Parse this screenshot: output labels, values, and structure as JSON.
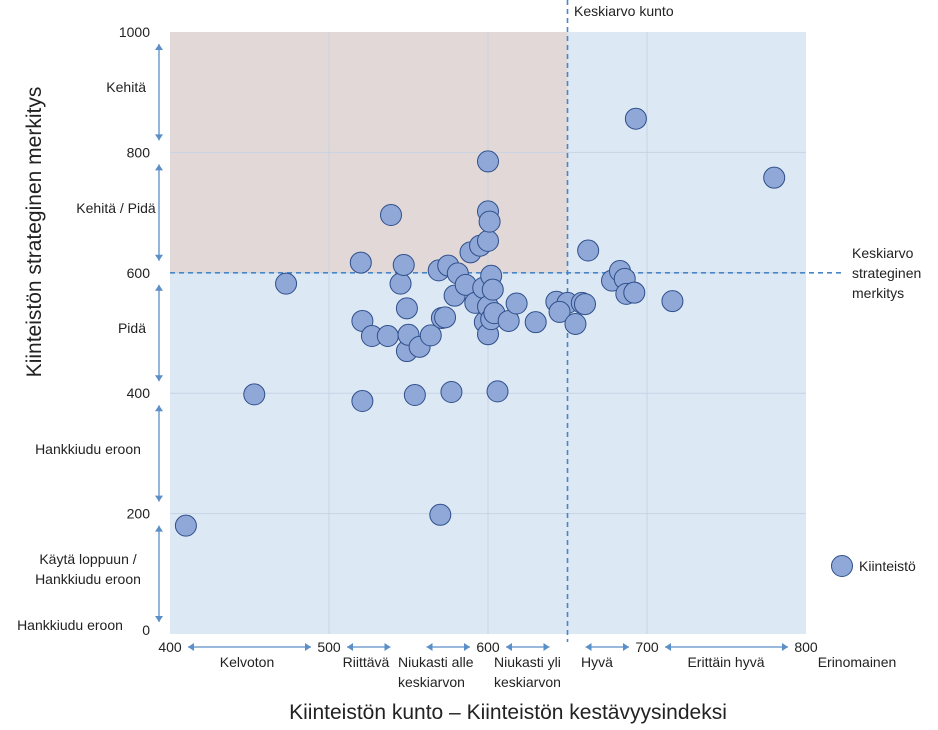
{
  "chart_data": {
    "type": "scatter",
    "xlabel": "Kiinteistön kunto – Kiinteistön kestävyysindeksi",
    "ylabel": "Kiinteistön strateginen merkitys",
    "xlim": [
      400,
      800
    ],
    "ylim": [
      0,
      1000
    ],
    "x_ticks": [
      400,
      500,
      600,
      700,
      800
    ],
    "y_ticks": [
      0,
      200,
      400,
      600,
      800,
      1000
    ],
    "x_tick_labels": [
      "400",
      "500",
      "600",
      "700",
      "800"
    ],
    "y_tick_labels": [
      "0",
      "200",
      "400",
      "600",
      "800",
      "1000"
    ],
    "grid": true,
    "average_x": 650,
    "average_y": 600,
    "average_x_label": "Keskiarvo kunto",
    "average_y_label": [
      "Keskiarvo",
      "strateginen",
      "merkitys"
    ],
    "highlight_region": {
      "x": [
        400,
        650
      ],
      "y": [
        600,
        1000
      ],
      "color": "#e2d8d8"
    },
    "background_color": "#dde8f5",
    "point_color": "#8fa8d8",
    "point_border": "#2f4f8a",
    "legend": {
      "label": "Kiinteistö",
      "position": "right"
    },
    "x_categories": [
      {
        "label": [
          "Kelvoton"
        ],
        "range": [
          400,
          500
        ]
      },
      {
        "label": [
          "Riittävä"
        ],
        "range": [
          500,
          550
        ]
      },
      {
        "label": [
          "Niukasti alle",
          "keskiarvon"
        ],
        "range": [
          550,
          600
        ]
      },
      {
        "label": [
          "Niukasti yli",
          "keskiarvon"
        ],
        "range": [
          600,
          650
        ]
      },
      {
        "label": [
          "Hyvä"
        ],
        "range": [
          650,
          700
        ]
      },
      {
        "label": [
          "Erittäin hyvä"
        ],
        "range": [
          700,
          800
        ]
      },
      {
        "label": [
          "Erinomainen"
        ],
        "range": [
          800,
          820
        ]
      }
    ],
    "y_categories": [
      {
        "label": [
          "Kehitä"
        ],
        "range": [
          800,
          1000
        ]
      },
      {
        "label": [
          "Kehitä / Pidä"
        ],
        "range": [
          600,
          800
        ]
      },
      {
        "label": [
          "Pidä"
        ],
        "range": [
          400,
          600
        ]
      },
      {
        "label": [
          "Hankkiudu eroon"
        ],
        "range": [
          200,
          400
        ]
      },
      {
        "label": [
          "Käytä loppuun /",
          "Hankkiudu eroon"
        ],
        "range": [
          0,
          200
        ]
      },
      {
        "label": [
          "Hankkiudu eroon"
        ],
        "range": [
          0,
          0
        ]
      }
    ],
    "series": [
      {
        "points": [
          [
            410,
            180
          ],
          [
            453,
            398
          ],
          [
            473,
            582
          ],
          [
            520,
            617
          ],
          [
            521,
            520
          ],
          [
            521,
            387
          ],
          [
            539,
            696
          ],
          [
            527,
            495
          ],
          [
            537,
            495
          ],
          [
            545,
            582
          ],
          [
            547,
            613
          ],
          [
            549,
            541
          ],
          [
            549,
            470
          ],
          [
            550,
            497
          ],
          [
            554,
            397
          ],
          [
            557,
            477
          ],
          [
            564,
            496
          ],
          [
            569,
            604
          ],
          [
            570,
            198
          ],
          [
            571,
            525
          ],
          [
            573,
            526
          ],
          [
            575,
            612
          ],
          [
            577,
            402
          ],
          [
            579,
            562
          ],
          [
            581,
            599
          ],
          [
            586,
            580
          ],
          [
            589,
            634
          ],
          [
            592,
            550
          ],
          [
            595,
            645
          ],
          [
            597,
            575
          ],
          [
            598,
            518
          ],
          [
            600,
            785
          ],
          [
            600,
            498
          ],
          [
            600,
            544
          ],
          [
            600,
            702
          ],
          [
            600,
            653
          ],
          [
            601,
            685
          ],
          [
            602,
            523
          ],
          [
            602,
            595
          ],
          [
            604,
            533
          ],
          [
            603,
            572
          ],
          [
            606,
            403
          ],
          [
            613,
            520
          ],
          [
            618,
            549
          ],
          [
            630,
            518
          ],
          [
            643,
            552
          ],
          [
            650,
            550
          ],
          [
            645,
            535
          ],
          [
            659,
            550
          ],
          [
            655,
            515
          ],
          [
            661,
            548
          ],
          [
            663,
            637
          ],
          [
            678,
            587
          ],
          [
            683,
            603
          ],
          [
            686,
            590
          ],
          [
            687,
            565
          ],
          [
            692,
            567
          ],
          [
            693,
            856
          ],
          [
            716,
            553
          ],
          [
            780,
            758
          ]
        ]
      }
    ]
  }
}
